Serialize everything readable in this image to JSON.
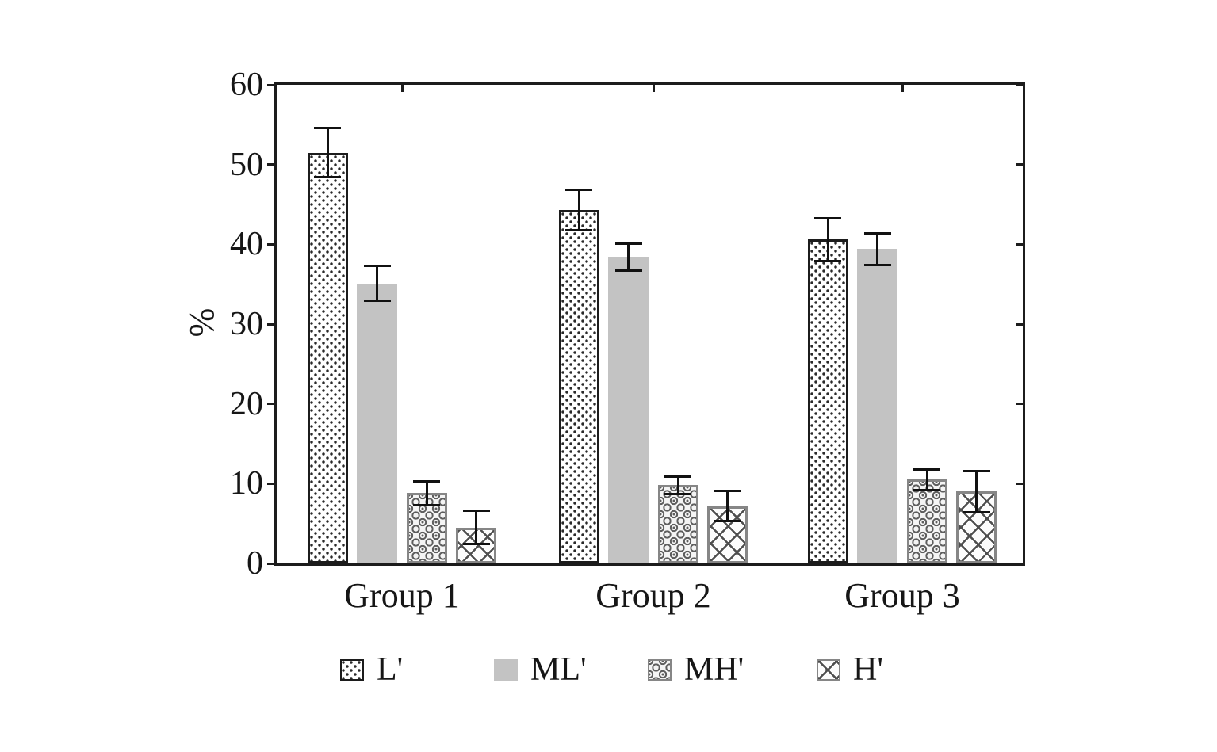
{
  "chart_data": {
    "type": "bar",
    "title": "",
    "ylabel": "%",
    "xlabel": "",
    "ylim": [
      0,
      60
    ],
    "yticks": [
      0,
      10,
      20,
      30,
      40,
      50,
      60
    ],
    "grid": false,
    "legend_position": "bottom",
    "categories": [
      "Group 1",
      "Group 2",
      "Group 3"
    ],
    "series": [
      {
        "name": "L'",
        "pattern": "dotted",
        "values": [
          51.5,
          44.3,
          40.6
        ],
        "errors": [
          3.1,
          2.5,
          2.7
        ]
      },
      {
        "name": "ML'",
        "pattern": "solid-gray",
        "values": [
          35.1,
          38.4,
          39.4
        ],
        "errors": [
          2.2,
          1.7,
          2.0
        ]
      },
      {
        "name": "MH'",
        "pattern": "circle-ornament",
        "values": [
          8.8,
          9.8,
          10.5
        ],
        "errors": [
          1.5,
          1.1,
          1.3
        ]
      },
      {
        "name": "H'",
        "pattern": "diagonal-crosshatch",
        "values": [
          4.5,
          7.2,
          9.0
        ],
        "errors": [
          2.1,
          1.9,
          2.6
        ]
      }
    ]
  },
  "colors": {
    "ink": "#1c1c1c",
    "solid_bar_gray": "#c3c3c3",
    "pattern_stroke": "#4e4e4e",
    "pattern_border": "#868686",
    "error_bar": "#111111",
    "background": "#ffffff"
  }
}
